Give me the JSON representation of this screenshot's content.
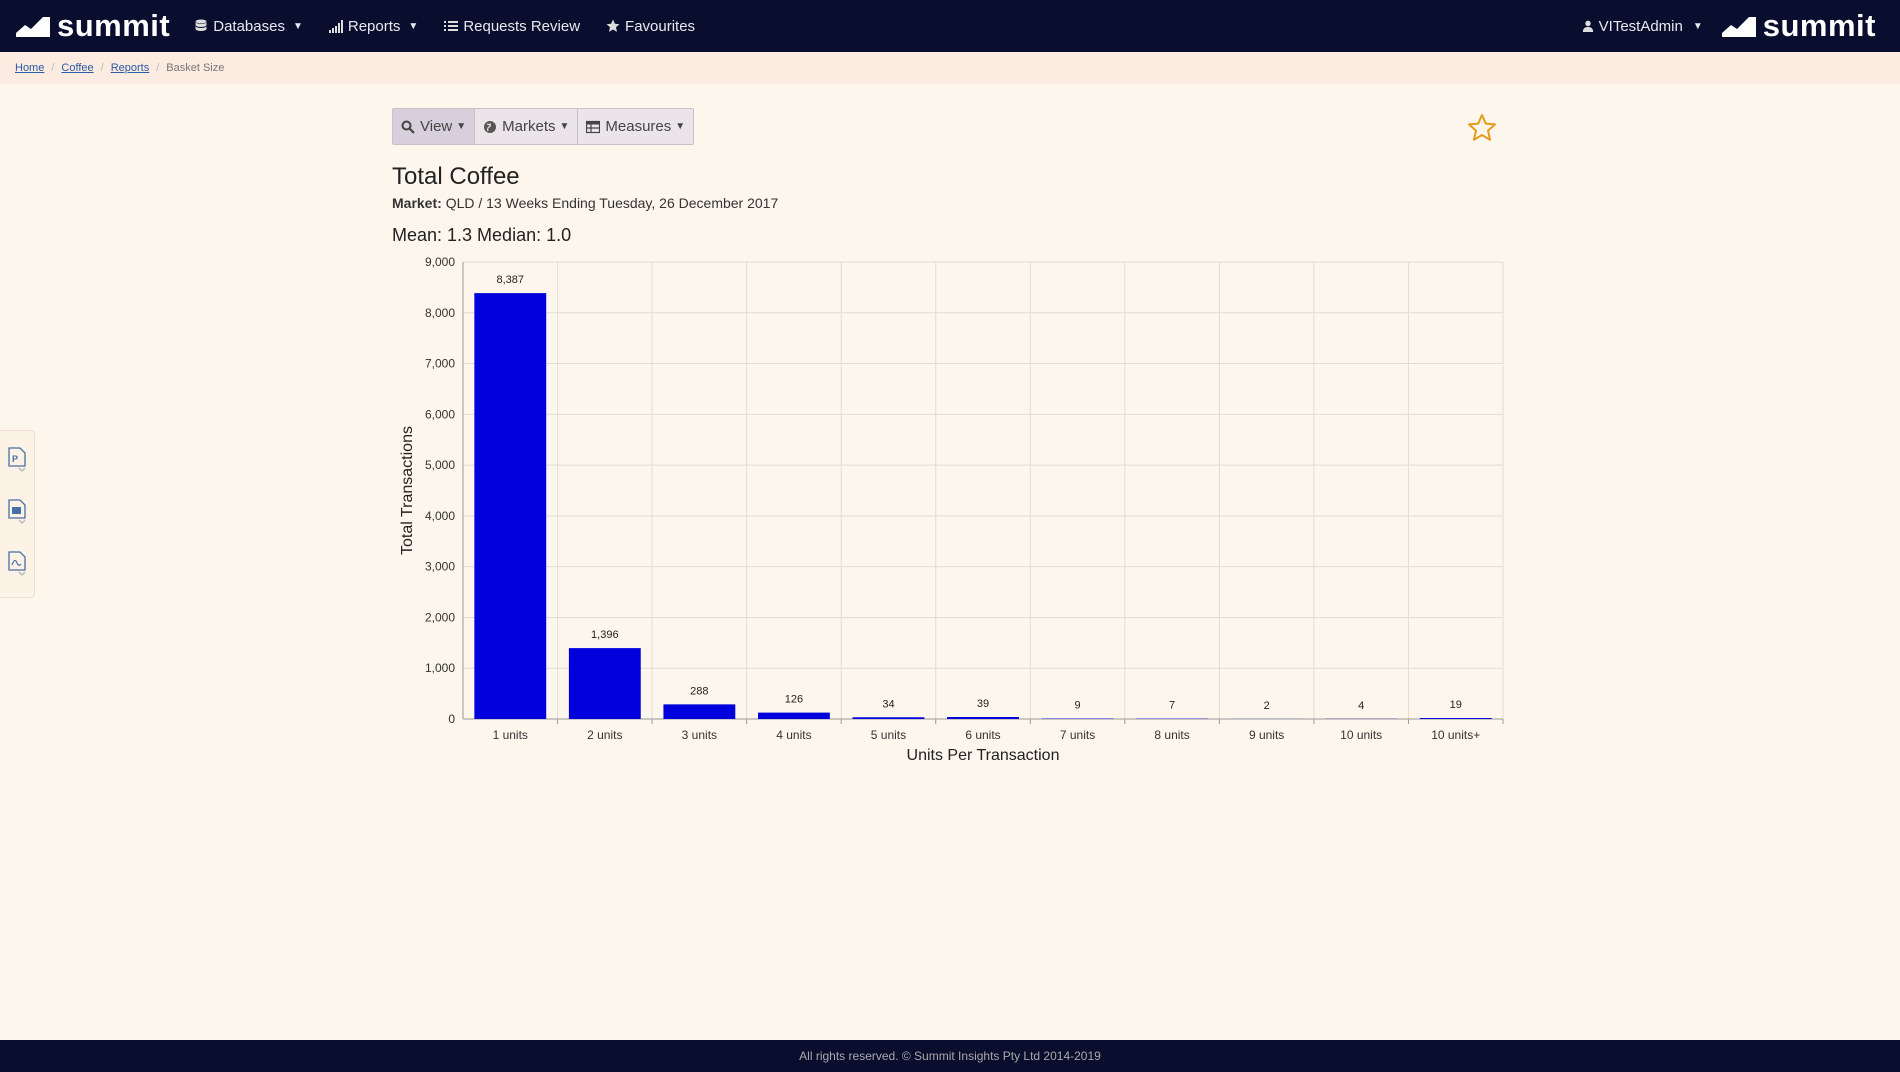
{
  "nav": {
    "brand": "summit",
    "items": [
      {
        "label": "Databases",
        "icon": "database-icon",
        "has_caret": true
      },
      {
        "label": "Reports",
        "icon": "bar-chart-icon",
        "has_caret": true
      },
      {
        "label": "Requests Review",
        "icon": "list-icon",
        "has_caret": false
      },
      {
        "label": "Favourites",
        "icon": "star-icon",
        "has_caret": false
      }
    ],
    "user": "VITestAdmin",
    "right_brand": "summit"
  },
  "breadcrumb": {
    "home": "Home",
    "coffee": "Coffee",
    "reports": "Reports",
    "current": "Basket Size"
  },
  "toolbar": {
    "view_label": "View",
    "markets_label": "Markets",
    "measures_label": "Measures"
  },
  "report": {
    "title": "Total Coffee",
    "market_label": "Market:",
    "market_value": "QLD / 13 Weeks Ending Tuesday, 26 December 2017",
    "stats": "Mean: 1.3 Median: 1.0"
  },
  "side_tools": [
    "ppt-export-icon",
    "image-export-icon",
    "pdf-export-icon"
  ],
  "chart_data": {
    "type": "bar",
    "categories": [
      "1 units",
      "2 units",
      "3 units",
      "4 units",
      "5 units",
      "6 units",
      "7 units",
      "8 units",
      "9 units",
      "10 units",
      "10 units+"
    ],
    "values": [
      8387,
      1396,
      288,
      126,
      34,
      39,
      9,
      7,
      2,
      4,
      19
    ],
    "value_labels": [
      "8,387",
      "1,396",
      "288",
      "126",
      "34",
      "39",
      "9",
      "7",
      "2",
      "4",
      "19"
    ],
    "xlabel": "Units Per Transaction",
    "ylabel": "Total Transactions",
    "ylim": [
      0,
      9000
    ],
    "yticks": [
      0,
      1000,
      2000,
      3000,
      4000,
      5000,
      6000,
      7000,
      8000,
      9000
    ],
    "ytick_labels": [
      "0",
      "1,000",
      "2,000",
      "3,000",
      "4,000",
      "5,000",
      "6,000",
      "7,000",
      "8,000",
      "9,000"
    ],
    "bar_color": "#0000dd",
    "grid": true
  },
  "footer": {
    "text": "All rights reserved. © Summit Insights Pty Ltd 2014-2019"
  },
  "colors": {
    "navbar": "#0a0e2e",
    "background": "#fdf6ec",
    "breadcrumb_bg": "#fcebe0",
    "accent_star": "#e69a1a"
  }
}
